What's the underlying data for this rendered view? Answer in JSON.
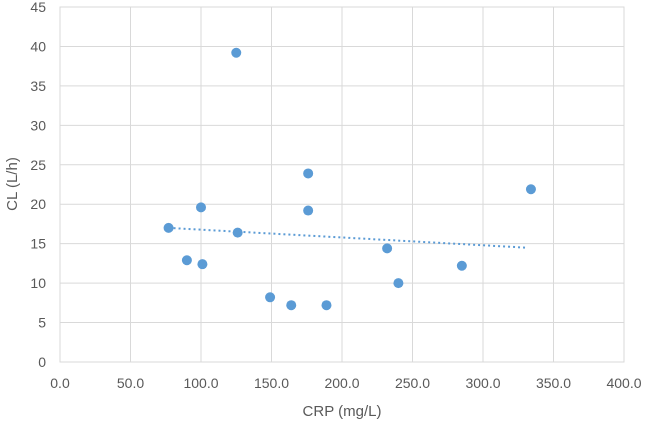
{
  "chart_data": {
    "type": "scatter",
    "title": "",
    "xlabel": "CRP (mg/L)",
    "ylabel": "CL (L/h)",
    "xlim": [
      0,
      400
    ],
    "ylim": [
      0,
      45
    ],
    "x_ticks": [
      "0.0",
      "50.0",
      "100.0",
      "150.0",
      "200.0",
      "250.0",
      "300.0",
      "350.0",
      "400.0"
    ],
    "y_ticks": [
      "0",
      "5",
      "10",
      "15",
      "20",
      "25",
      "30",
      "35",
      "40",
      "45"
    ],
    "grid": true,
    "legend": "none",
    "colors": {
      "points": "#5b9bd5",
      "trendline": "#5b9bd5",
      "grid": "#d9d9d9",
      "text": "#595959"
    },
    "series": [
      {
        "points": [
          {
            "x": 77,
            "y": 17.0
          },
          {
            "x": 90,
            "y": 12.9
          },
          {
            "x": 100,
            "y": 19.6
          },
          {
            "x": 101,
            "y": 12.4
          },
          {
            "x": 125,
            "y": 39.2
          },
          {
            "x": 126,
            "y": 16.4
          },
          {
            "x": 149,
            "y": 8.2
          },
          {
            "x": 164,
            "y": 7.2
          },
          {
            "x": 176,
            "y": 23.9
          },
          {
            "x": 176,
            "y": 19.2
          },
          {
            "x": 189,
            "y": 7.2
          },
          {
            "x": 232,
            "y": 14.4
          },
          {
            "x": 240,
            "y": 10.0
          },
          {
            "x": 285,
            "y": 12.2
          },
          {
            "x": 334,
            "y": 21.9
          }
        ]
      }
    ],
    "trendline": {
      "type": "linear",
      "style": "dotted",
      "x": [
        77,
        330
      ],
      "y": [
        17.0,
        14.5
      ]
    }
  }
}
